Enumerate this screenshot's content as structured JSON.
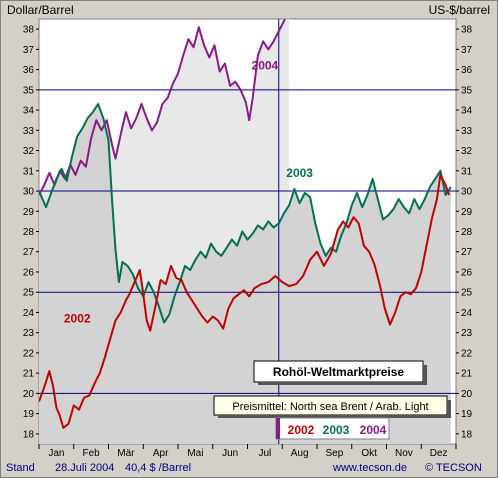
{
  "header": {
    "left_unit": "Dollar/Barrel",
    "right_unit": "US-$/barrel"
  },
  "footer": {
    "stand_label": "Stand",
    "date": "28.Juli 2004",
    "price": "40,4 $ /Barrel",
    "website": "www.tecson.de",
    "copyright": "© TECSON"
  },
  "colors": {
    "plot_bg": "#ffffff",
    "area_2004": "#e8e8e8",
    "area_others": "#d3d3d3",
    "grid_line": "#000080",
    "series_2002": "#c00000",
    "series_2003": "#007050",
    "series_2004": "#8a1a8a",
    "footer_text": "#000080"
  },
  "chart_data": {
    "type": "line",
    "title": "Rohöl-Weltmarktpreise",
    "subtitle": "Preismittel: North sea Brent / Arab. Light",
    "ylim": [
      17.5,
      38.5
    ],
    "yticks": [
      18,
      19,
      20,
      21,
      22,
      23,
      24,
      25,
      26,
      27,
      28,
      29,
      30,
      31,
      32,
      33,
      34,
      35,
      36,
      37,
      38
    ],
    "yticks_labels": [
      "18",
      "19",
      "20",
      "21",
      "22",
      "23",
      "24",
      "25",
      "26",
      "27",
      "28",
      "29",
      "30",
      "31",
      "32",
      "33",
      "34",
      "35",
      "36",
      "37",
      "38"
    ],
    "major_gridlines": [
      20,
      25,
      30,
      35
    ],
    "xlim": [
      0,
      12
    ],
    "categories": [
      "Jan",
      "Feb",
      "Mär",
      "Apr",
      "Mai",
      "Jun",
      "Jul",
      "Aug",
      "Sep",
      "Okt",
      "Nov",
      "Dez"
    ],
    "current_marker_month": 6.9,
    "series": [
      {
        "name": "2002",
        "label_pos": [
          1.1,
          23.5
        ],
        "points": [
          [
            0.0,
            19.6
          ],
          [
            0.15,
            20.3
          ],
          [
            0.3,
            21.1
          ],
          [
            0.4,
            20.4
          ],
          [
            0.5,
            19.3
          ],
          [
            0.6,
            18.9
          ],
          [
            0.7,
            18.3
          ],
          [
            0.85,
            18.5
          ],
          [
            1.0,
            19.4
          ],
          [
            1.15,
            19.2
          ],
          [
            1.3,
            19.8
          ],
          [
            1.45,
            19.9
          ],
          [
            1.6,
            20.5
          ],
          [
            1.75,
            21.0
          ],
          [
            1.9,
            21.8
          ],
          [
            2.05,
            22.7
          ],
          [
            2.2,
            23.6
          ],
          [
            2.35,
            24.0
          ],
          [
            2.5,
            24.6
          ],
          [
            2.6,
            24.9
          ],
          [
            2.75,
            25.5
          ],
          [
            2.9,
            26.1
          ],
          [
            3.0,
            24.9
          ],
          [
            3.1,
            23.6
          ],
          [
            3.2,
            23.1
          ],
          [
            3.35,
            24.3
          ],
          [
            3.5,
            25.6
          ],
          [
            3.65,
            25.4
          ],
          [
            3.8,
            26.3
          ],
          [
            3.95,
            25.7
          ],
          [
            4.1,
            25.6
          ],
          [
            4.25,
            25.0
          ],
          [
            4.4,
            24.6
          ],
          [
            4.55,
            24.2
          ],
          [
            4.7,
            23.8
          ],
          [
            4.85,
            23.5
          ],
          [
            5.0,
            23.8
          ],
          [
            5.15,
            23.6
          ],
          [
            5.3,
            23.2
          ],
          [
            5.45,
            24.2
          ],
          [
            5.6,
            24.7
          ],
          [
            5.75,
            24.9
          ],
          [
            5.9,
            25.1
          ],
          [
            6.05,
            24.8
          ],
          [
            6.2,
            25.2
          ],
          [
            6.4,
            25.4
          ],
          [
            6.6,
            25.5
          ],
          [
            6.8,
            25.8
          ],
          [
            7.0,
            25.5
          ],
          [
            7.2,
            25.3
          ],
          [
            7.4,
            25.4
          ],
          [
            7.6,
            25.8
          ],
          [
            7.8,
            26.6
          ],
          [
            8.0,
            27.0
          ],
          [
            8.2,
            26.3
          ],
          [
            8.4,
            26.9
          ],
          [
            8.6,
            28.1
          ],
          [
            8.75,
            28.5
          ],
          [
            8.9,
            28.2
          ],
          [
            9.05,
            28.7
          ],
          [
            9.2,
            28.4
          ],
          [
            9.35,
            27.3
          ],
          [
            9.5,
            27.0
          ],
          [
            9.65,
            26.4
          ],
          [
            9.8,
            25.4
          ],
          [
            9.95,
            24.2
          ],
          [
            10.1,
            23.4
          ],
          [
            10.25,
            24.0
          ],
          [
            10.4,
            24.8
          ],
          [
            10.55,
            25.0
          ],
          [
            10.7,
            24.9
          ],
          [
            10.85,
            25.2
          ],
          [
            11.0,
            26.0
          ],
          [
            11.15,
            27.3
          ],
          [
            11.3,
            28.6
          ],
          [
            11.45,
            29.6
          ],
          [
            11.55,
            30.8
          ],
          [
            11.7,
            30.3
          ],
          [
            11.8,
            29.8
          ]
        ]
      },
      {
        "name": "2003",
        "label_pos": [
          7.5,
          30.7
        ],
        "points": [
          [
            0.0,
            30.0
          ],
          [
            0.2,
            29.2
          ],
          [
            0.35,
            29.9
          ],
          [
            0.5,
            30.6
          ],
          [
            0.65,
            31.1
          ],
          [
            0.8,
            30.5
          ],
          [
            0.95,
            31.7
          ],
          [
            1.1,
            32.7
          ],
          [
            1.25,
            33.1
          ],
          [
            1.4,
            33.6
          ],
          [
            1.55,
            33.9
          ],
          [
            1.7,
            34.3
          ],
          [
            1.85,
            33.6
          ],
          [
            2.0,
            32.5
          ],
          [
            2.1,
            29.6
          ],
          [
            2.2,
            27.1
          ],
          [
            2.3,
            25.5
          ],
          [
            2.4,
            26.5
          ],
          [
            2.55,
            26.3
          ],
          [
            2.7,
            25.9
          ],
          [
            2.85,
            25.2
          ],
          [
            3.0,
            24.8
          ],
          [
            3.15,
            25.5
          ],
          [
            3.3,
            25.0
          ],
          [
            3.45,
            24.3
          ],
          [
            3.6,
            23.5
          ],
          [
            3.75,
            23.9
          ],
          [
            3.9,
            24.8
          ],
          [
            4.05,
            25.5
          ],
          [
            4.2,
            26.3
          ],
          [
            4.35,
            26.1
          ],
          [
            4.5,
            26.6
          ],
          [
            4.65,
            27.0
          ],
          [
            4.8,
            26.7
          ],
          [
            4.95,
            27.4
          ],
          [
            5.1,
            27.0
          ],
          [
            5.25,
            26.8
          ],
          [
            5.4,
            27.2
          ],
          [
            5.55,
            27.6
          ],
          [
            5.7,
            27.3
          ],
          [
            5.85,
            28.0
          ],
          [
            6.0,
            27.6
          ],
          [
            6.15,
            27.9
          ],
          [
            6.3,
            28.3
          ],
          [
            6.45,
            28.1
          ],
          [
            6.6,
            28.5
          ],
          [
            6.75,
            28.2
          ],
          [
            6.9,
            28.4
          ],
          [
            7.05,
            28.9
          ],
          [
            7.2,
            29.3
          ],
          [
            7.35,
            30.1
          ],
          [
            7.5,
            29.4
          ],
          [
            7.65,
            29.9
          ],
          [
            7.8,
            29.7
          ],
          [
            7.95,
            28.4
          ],
          [
            8.1,
            27.4
          ],
          [
            8.25,
            26.8
          ],
          [
            8.4,
            27.2
          ],
          [
            8.55,
            27.0
          ],
          [
            8.7,
            27.8
          ],
          [
            8.85,
            28.4
          ],
          [
            9.0,
            29.3
          ],
          [
            9.15,
            29.9
          ],
          [
            9.3,
            29.2
          ],
          [
            9.45,
            29.8
          ],
          [
            9.6,
            30.6
          ],
          [
            9.75,
            29.6
          ],
          [
            9.9,
            28.6
          ],
          [
            10.05,
            28.8
          ],
          [
            10.2,
            29.1
          ],
          [
            10.35,
            29.6
          ],
          [
            10.5,
            29.2
          ],
          [
            10.65,
            28.9
          ],
          [
            10.8,
            29.6
          ],
          [
            10.95,
            29.1
          ],
          [
            11.1,
            29.6
          ],
          [
            11.25,
            30.2
          ],
          [
            11.4,
            30.6
          ],
          [
            11.55,
            31.0
          ],
          [
            11.7,
            29.8
          ],
          [
            11.85,
            30.2
          ]
        ]
      },
      {
        "name": "2004",
        "label_pos": [
          6.5,
          36.0
        ],
        "points": [
          [
            0.0,
            29.8
          ],
          [
            0.15,
            30.3
          ],
          [
            0.3,
            30.9
          ],
          [
            0.45,
            30.3
          ],
          [
            0.6,
            31.0
          ],
          [
            0.75,
            30.6
          ],
          [
            0.9,
            31.3
          ],
          [
            1.05,
            30.8
          ],
          [
            1.2,
            31.5
          ],
          [
            1.35,
            31.2
          ],
          [
            1.5,
            32.6
          ],
          [
            1.65,
            33.5
          ],
          [
            1.8,
            33.0
          ],
          [
            1.95,
            33.5
          ],
          [
            2.1,
            32.3
          ],
          [
            2.2,
            31.6
          ],
          [
            2.35,
            32.8
          ],
          [
            2.5,
            33.9
          ],
          [
            2.65,
            33.1
          ],
          [
            2.8,
            33.6
          ],
          [
            2.95,
            34.3
          ],
          [
            3.1,
            33.6
          ],
          [
            3.25,
            33.0
          ],
          [
            3.4,
            33.4
          ],
          [
            3.55,
            34.3
          ],
          [
            3.7,
            34.6
          ],
          [
            3.85,
            35.3
          ],
          [
            4.0,
            35.8
          ],
          [
            4.15,
            36.7
          ],
          [
            4.3,
            37.5
          ],
          [
            4.45,
            37.1
          ],
          [
            4.6,
            38.1
          ],
          [
            4.75,
            37.2
          ],
          [
            4.9,
            36.6
          ],
          [
            5.05,
            37.2
          ],
          [
            5.2,
            35.9
          ],
          [
            5.35,
            36.3
          ],
          [
            5.5,
            35.2
          ],
          [
            5.65,
            35.4
          ],
          [
            5.8,
            35.0
          ],
          [
            5.95,
            34.4
          ],
          [
            6.05,
            33.5
          ],
          [
            6.15,
            34.6
          ],
          [
            6.3,
            36.7
          ],
          [
            6.45,
            37.4
          ],
          [
            6.6,
            37.0
          ],
          [
            6.75,
            37.4
          ],
          [
            6.9,
            37.9
          ],
          [
            7.05,
            38.4
          ],
          [
            7.2,
            38.9
          ]
        ]
      }
    ]
  }
}
